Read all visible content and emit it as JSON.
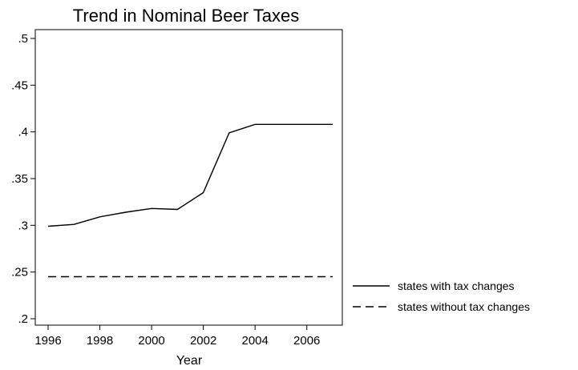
{
  "chart_data": {
    "type": "line",
    "title": "Trend in Nominal Beer Taxes",
    "xlabel": "Year",
    "ylabel": "",
    "xlim": [
      1996,
      2007
    ],
    "ylim": [
      0.2,
      0.5
    ],
    "x": [
      1996,
      1997,
      1998,
      1999,
      2000,
      2001,
      2002,
      2003,
      2004,
      2005,
      2006,
      2007
    ],
    "x_ticks": [
      1996,
      1998,
      2000,
      2002,
      2004,
      2006
    ],
    "x_tick_labels": [
      "1996",
      "1998",
      "2000",
      "2002",
      "2004",
      "2006"
    ],
    "y_ticks": [
      0.2,
      0.25,
      0.3,
      0.35,
      0.4,
      0.45,
      0.5
    ],
    "y_tick_labels": [
      ".2",
      ".25",
      ".3",
      ".35",
      ".4",
      ".45",
      ".5"
    ],
    "grid": false,
    "legend_position": "right",
    "series": [
      {
        "name": "states with tax changes",
        "line_style": "solid",
        "color": "#000000",
        "values": [
          0.299,
          0.301,
          0.309,
          0.314,
          0.318,
          0.317,
          0.335,
          0.399,
          0.408,
          0.408,
          0.408,
          0.408
        ]
      },
      {
        "name": "states without tax changes",
        "line_style": "dashed",
        "color": "#000000",
        "values": [
          0.245,
          0.245,
          0.245,
          0.245,
          0.245,
          0.245,
          0.245,
          0.245,
          0.245,
          0.245,
          0.245,
          0.245
        ]
      }
    ]
  }
}
